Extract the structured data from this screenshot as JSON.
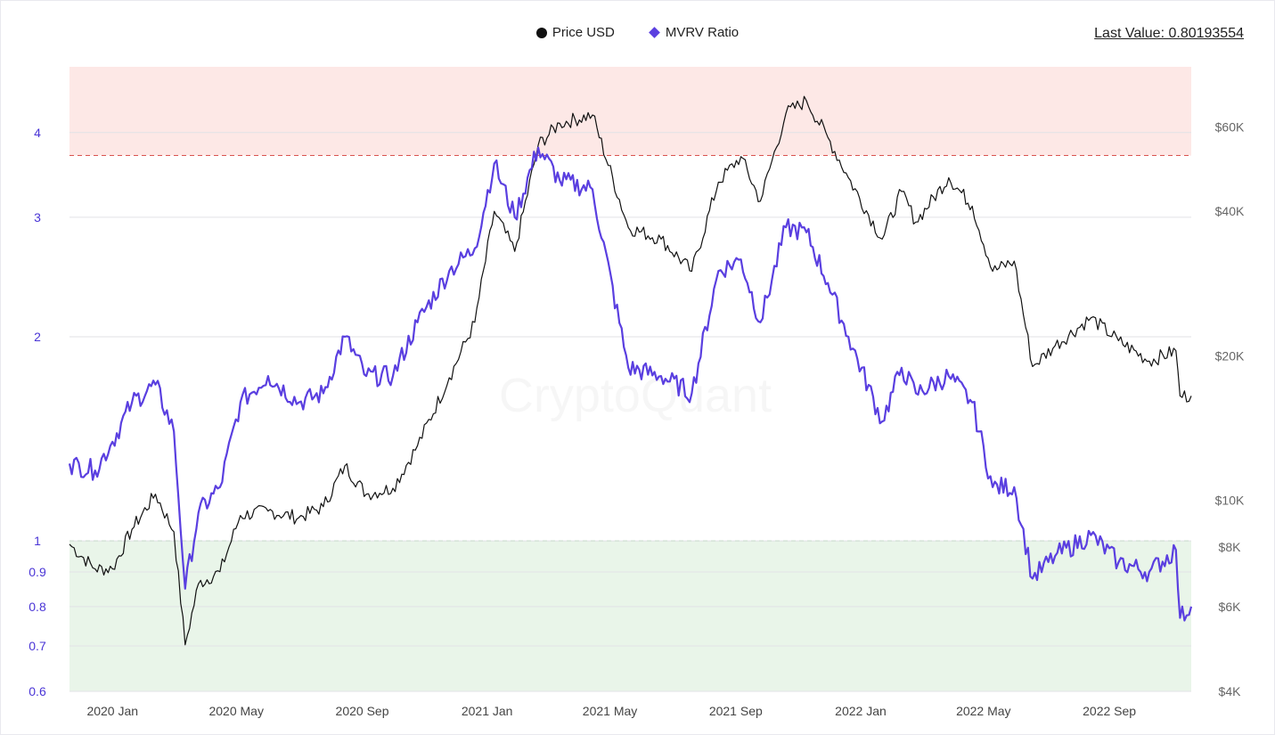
{
  "legend": {
    "price_label": "Price USD",
    "mvrv_label": "MVRV Ratio"
  },
  "last_value": {
    "label": "Last Value: 0.80193554"
  },
  "watermark": "CryptoQuant",
  "colors": {
    "price": "#111111",
    "mvrv": "#5a3fe0",
    "upper_zone": "#fde8e6",
    "lower_zone": "#e9f5e9",
    "upper_line": "#d9534f",
    "lower_line": "#5cb85c"
  },
  "chart_data": {
    "type": "line",
    "title": "",
    "xlabel": "",
    "ylabel": "",
    "x_ticks": [
      "2020 Jan",
      "2020 May",
      "2020 Sep",
      "2021 Jan",
      "2021 May",
      "2021 Sep",
      "2022 Jan",
      "2022 May",
      "2022 Sep"
    ],
    "left_axis": {
      "scale": "log",
      "range": [
        0.6,
        5.0
      ],
      "ticks": [
        "0.6",
        "0.7",
        "0.8",
        "0.9",
        "1",
        "2",
        "3",
        "4"
      ],
      "tick_values": [
        0.6,
        0.7,
        0.8,
        0.9,
        1,
        2,
        3,
        4
      ]
    },
    "right_axis": {
      "scale": "log",
      "range": [
        4000,
        80000
      ],
      "ticks": [
        "$4K",
        "$6K",
        "$8K",
        "$10K",
        "$20K",
        "$40K",
        "$60K"
      ],
      "tick_values": [
        4000,
        6000,
        8000,
        10000,
        20000,
        40000,
        60000
      ]
    },
    "thresholds": {
      "upper": 3.7,
      "lower": 1.0
    },
    "x_range": [
      "2019-11-20",
      "2022-11-20"
    ],
    "series": [
      {
        "name": "Price USD",
        "axis": "right",
        "x": [
          "2019-11-20",
          "2019-12-15",
          "2020-01-01",
          "2020-01-20",
          "2020-02-12",
          "2020-03-01",
          "2020-03-12",
          "2020-03-25",
          "2020-04-15",
          "2020-05-05",
          "2020-06-01",
          "2020-07-01",
          "2020-07-25",
          "2020-08-15",
          "2020-09-05",
          "2020-10-01",
          "2020-10-25",
          "2020-11-25",
          "2020-12-20",
          "2021-01-08",
          "2021-01-28",
          "2021-02-20",
          "2021-03-13",
          "2021-04-14",
          "2021-05-19",
          "2021-06-20",
          "2021-07-20",
          "2021-08-15",
          "2021-09-06",
          "2021-09-25",
          "2021-10-20",
          "2021-11-09",
          "2021-11-30",
          "2021-12-20",
          "2022-01-22",
          "2022-02-10",
          "2022-02-24",
          "2022-03-28",
          "2022-04-20",
          "2022-05-10",
          "2022-05-31",
          "2022-06-18",
          "2022-07-10",
          "2022-08-14",
          "2022-09-10",
          "2022-10-10",
          "2022-11-05",
          "2022-11-09",
          "2022-11-20"
        ],
        "values": [
          8100,
          7200,
          7200,
          8700,
          10300,
          8600,
          5000,
          6700,
          7100,
          9300,
          9500,
          9200,
          9700,
          11800,
          10300,
          10600,
          13000,
          18000,
          23500,
          40000,
          33000,
          55000,
          61000,
          63500,
          37000,
          35000,
          30000,
          46000,
          52000,
          42000,
          64000,
          68000,
          57000,
          47000,
          35000,
          44000,
          38000,
          47000,
          41000,
          30000,
          31500,
          19000,
          21000,
          24000,
          21500,
          19500,
          20500,
          16500,
          16500
        ]
      },
      {
        "name": "MVRV Ratio",
        "axis": "left",
        "x": [
          "2019-11-20",
          "2019-12-15",
          "2020-01-01",
          "2020-01-20",
          "2020-02-12",
          "2020-03-01",
          "2020-03-12",
          "2020-03-25",
          "2020-04-15",
          "2020-05-05",
          "2020-06-01",
          "2020-07-01",
          "2020-07-25",
          "2020-08-15",
          "2020-09-05",
          "2020-10-01",
          "2020-10-25",
          "2020-11-25",
          "2020-12-20",
          "2021-01-08",
          "2021-01-28",
          "2021-02-20",
          "2021-03-13",
          "2021-04-14",
          "2021-05-19",
          "2021-06-20",
          "2021-07-20",
          "2021-08-15",
          "2021-09-06",
          "2021-09-25",
          "2021-10-20",
          "2021-11-09",
          "2021-11-30",
          "2021-12-20",
          "2022-01-22",
          "2022-02-10",
          "2022-02-24",
          "2022-03-28",
          "2022-04-20",
          "2022-05-10",
          "2022-05-31",
          "2022-06-18",
          "2022-07-10",
          "2022-08-14",
          "2022-09-10",
          "2022-10-10",
          "2022-11-05",
          "2022-11-09",
          "2022-11-20"
        ],
        "values": [
          1.3,
          1.27,
          1.4,
          1.6,
          1.7,
          1.45,
          0.85,
          1.1,
          1.2,
          1.6,
          1.75,
          1.6,
          1.65,
          2.0,
          1.75,
          1.75,
          2.1,
          2.5,
          2.7,
          3.6,
          3.0,
          3.8,
          3.4,
          3.3,
          1.8,
          1.75,
          1.65,
          2.5,
          2.6,
          2.1,
          2.9,
          2.85,
          2.4,
          2.0,
          1.5,
          1.8,
          1.65,
          1.75,
          1.6,
          1.2,
          1.2,
          0.88,
          0.95,
          1.02,
          0.93,
          0.9,
          0.97,
          0.77,
          0.8
        ]
      }
    ],
    "grid": true,
    "legend_position": "top-center"
  }
}
